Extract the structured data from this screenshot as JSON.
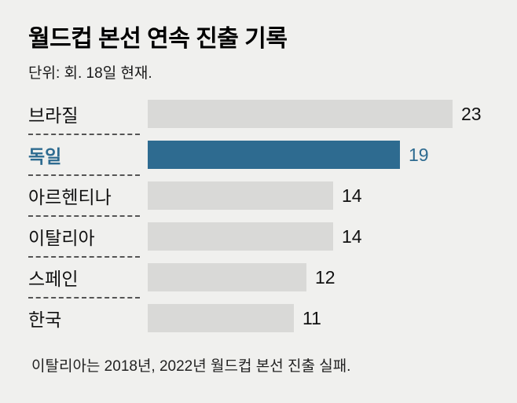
{
  "chart_data": {
    "type": "bar",
    "orientation": "horizontal",
    "title": "월드컵 본선 연속 진출 기록",
    "subtitle": "단위: 회. 18일 현재.",
    "categories": [
      "브라질",
      "독일",
      "아르헨티나",
      "이탈리아",
      "스페인",
      "한국"
    ],
    "values": [
      23,
      19,
      14,
      14,
      12,
      11
    ],
    "xlim": [
      0,
      23
    ],
    "highlight_index": 1,
    "colors": {
      "bar_default": "#d9d9d7",
      "bar_highlight": "#2e6b90",
      "text_default": "#111111",
      "text_highlight": "#2e6b90",
      "background": "#f0f0ee"
    },
    "footnote": "이탈리아는 2018년, 2022년 월드컵 본선 진출 실패."
  }
}
